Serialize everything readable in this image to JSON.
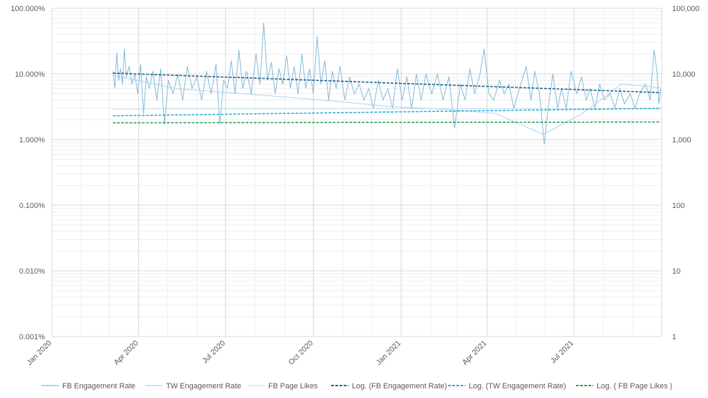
{
  "chart_data": {
    "type": "line",
    "title": "",
    "x_axis": {
      "type": "date",
      "range": [
        "2020-01-01",
        "2021-10-01"
      ],
      "ticks": [
        "2020-01-01",
        "2020-04-01",
        "2020-07-01",
        "2020-10-01",
        "2021-01-01",
        "2021-04-01",
        "2021-07-01"
      ],
      "tick_labels": [
        "Jan 2020",
        "Apr 2020",
        "Jul 2020",
        "Oct 2020",
        "Jan 2021",
        "Apr 2021",
        "Jul 2021"
      ]
    },
    "y_left": {
      "scale": "log",
      "range": [
        1e-05,
        1
      ],
      "ticks": [
        1e-05,
        0.0001,
        0.001,
        0.01,
        0.1,
        1
      ],
      "tick_labels": [
        "0.001%",
        "0.010%",
        "0.100%",
        "1.000%",
        "10.000%",
        "100.000%"
      ]
    },
    "y_right": {
      "scale": "log",
      "range": [
        1,
        100000
      ],
      "ticks": [
        1,
        10,
        100,
        1000,
        10000,
        100000
      ],
      "tick_labels": [
        "1",
        "10",
        "100",
        "1,000",
        "10,000",
        "100,000"
      ]
    },
    "grid": true,
    "legend_position": "bottom",
    "series": [
      {
        "name": "FB Engagement Rate",
        "axis": "left",
        "style": "solid",
        "color": "#7fb9d9",
        "points": [
          [
            "2020-03-05",
            0.11
          ],
          [
            "2020-03-07",
            0.06
          ],
          [
            "2020-03-09",
            0.21
          ],
          [
            "2020-03-11",
            0.08
          ],
          [
            "2020-03-13",
            0.12
          ],
          [
            "2020-03-15",
            0.07
          ],
          [
            "2020-03-17",
            0.24
          ],
          [
            "2020-03-19",
            0.09
          ],
          [
            "2020-03-22",
            0.13
          ],
          [
            "2020-03-25",
            0.07
          ],
          [
            "2020-03-28",
            0.1
          ],
          [
            "2020-03-31",
            0.05
          ],
          [
            "2020-04-03",
            0.14
          ],
          [
            "2020-04-06",
            0.025
          ],
          [
            "2020-04-09",
            0.09
          ],
          [
            "2020-04-12",
            0.06
          ],
          [
            "2020-04-16",
            0.11
          ],
          [
            "2020-04-20",
            0.04
          ],
          [
            "2020-04-24",
            0.12
          ],
          [
            "2020-04-28",
            0.017
          ],
          [
            "2020-05-02",
            0.08
          ],
          [
            "2020-05-07",
            0.05
          ],
          [
            "2020-05-12",
            0.1
          ],
          [
            "2020-05-17",
            0.04
          ],
          [
            "2020-05-22",
            0.13
          ],
          [
            "2020-05-27",
            0.06
          ],
          [
            "2020-06-01",
            0.09
          ],
          [
            "2020-06-06",
            0.04
          ],
          [
            "2020-06-11",
            0.11
          ],
          [
            "2020-06-16",
            0.05
          ],
          [
            "2020-06-21",
            0.14
          ],
          [
            "2020-06-25",
            0.017
          ],
          [
            "2020-06-29",
            0.08
          ],
          [
            "2020-07-03",
            0.06
          ],
          [
            "2020-07-07",
            0.16
          ],
          [
            "2020-07-11",
            0.05
          ],
          [
            "2020-07-15",
            0.23
          ],
          [
            "2020-07-19",
            0.06
          ],
          [
            "2020-07-23",
            0.11
          ],
          [
            "2020-07-28",
            0.05
          ],
          [
            "2020-08-02",
            0.2
          ],
          [
            "2020-08-06",
            0.07
          ],
          [
            "2020-08-10",
            0.6
          ],
          [
            "2020-08-14",
            0.08
          ],
          [
            "2020-08-18",
            0.15
          ],
          [
            "2020-08-22",
            0.05
          ],
          [
            "2020-08-26",
            0.12
          ],
          [
            "2020-08-30",
            0.07
          ],
          [
            "2020-09-03",
            0.19
          ],
          [
            "2020-09-07",
            0.06
          ],
          [
            "2020-09-11",
            0.13
          ],
          [
            "2020-09-15",
            0.05
          ],
          [
            "2020-09-19",
            0.2
          ],
          [
            "2020-09-23",
            0.06
          ],
          [
            "2020-09-27",
            0.12
          ],
          [
            "2020-10-01",
            0.05
          ],
          [
            "2020-10-05",
            0.37
          ],
          [
            "2020-10-09",
            0.07
          ],
          [
            "2020-10-13",
            0.16
          ],
          [
            "2020-10-17",
            0.04
          ],
          [
            "2020-10-21",
            0.11
          ],
          [
            "2020-10-25",
            0.06
          ],
          [
            "2020-10-29",
            0.13
          ],
          [
            "2020-11-03",
            0.04
          ],
          [
            "2020-11-08",
            0.09
          ],
          [
            "2020-11-13",
            0.05
          ],
          [
            "2020-11-18",
            0.07
          ],
          [
            "2020-11-23",
            0.04
          ],
          [
            "2020-11-28",
            0.06
          ],
          [
            "2020-12-03",
            0.03
          ],
          [
            "2020-12-08",
            0.08
          ],
          [
            "2020-12-13",
            0.04
          ],
          [
            "2020-12-18",
            0.06
          ],
          [
            "2020-12-23",
            0.03
          ],
          [
            "2020-12-28",
            0.12
          ],
          [
            "2021-01-02",
            0.04
          ],
          [
            "2021-01-07",
            0.09
          ],
          [
            "2021-01-12",
            0.03
          ],
          [
            "2021-01-17",
            0.1
          ],
          [
            "2021-01-22",
            0.04
          ],
          [
            "2021-01-27",
            0.1
          ],
          [
            "2021-02-02",
            0.05
          ],
          [
            "2021-02-08",
            0.1
          ],
          [
            "2021-02-14",
            0.04
          ],
          [
            "2021-02-20",
            0.09
          ],
          [
            "2021-02-26",
            0.015
          ],
          [
            "2021-03-04",
            0.07
          ],
          [
            "2021-03-09",
            0.04
          ],
          [
            "2021-03-14",
            0.12
          ],
          [
            "2021-03-19",
            0.05
          ],
          [
            "2021-03-24",
            0.09
          ],
          [
            "2021-03-29",
            0.24
          ],
          [
            "2021-04-03",
            0.05
          ],
          [
            "2021-04-08",
            0.04
          ],
          [
            "2021-04-14",
            0.08
          ],
          [
            "2021-04-19",
            0.05
          ],
          [
            "2021-04-24",
            0.07
          ],
          [
            "2021-04-29",
            0.03
          ],
          [
            "2021-05-05",
            0.06
          ],
          [
            "2021-05-12",
            0.13
          ],
          [
            "2021-05-17",
            0.04
          ],
          [
            "2021-05-21",
            0.11
          ],
          [
            "2021-05-26",
            0.05
          ],
          [
            "2021-05-31",
            0.0085
          ],
          [
            "2021-06-04",
            0.03
          ],
          [
            "2021-06-09",
            0.1
          ],
          [
            "2021-06-14",
            0.03
          ],
          [
            "2021-06-18",
            0.06
          ],
          [
            "2021-06-23",
            0.03
          ],
          [
            "2021-06-28",
            0.11
          ],
          [
            "2021-07-04",
            0.05
          ],
          [
            "2021-07-09",
            0.09
          ],
          [
            "2021-07-14",
            0.04
          ],
          [
            "2021-07-18",
            0.06
          ],
          [
            "2021-07-23",
            0.03
          ],
          [
            "2021-07-28",
            0.07
          ],
          [
            "2021-08-02",
            0.04
          ],
          [
            "2021-08-08",
            0.05
          ],
          [
            "2021-08-13",
            0.03
          ],
          [
            "2021-08-18",
            0.06
          ],
          [
            "2021-08-23",
            0.035
          ],
          [
            "2021-08-29",
            0.05
          ],
          [
            "2021-09-03",
            0.03
          ],
          [
            "2021-09-08",
            0.05
          ],
          [
            "2021-09-14",
            0.07
          ],
          [
            "2021-09-19",
            0.04
          ],
          [
            "2021-09-23",
            0.23
          ],
          [
            "2021-09-26",
            0.11
          ],
          [
            "2021-09-28",
            0.035
          ],
          [
            "2021-09-30",
            0.06
          ]
        ]
      },
      {
        "name": "TW Engagement Rate",
        "axis": "left",
        "style": "solid",
        "color": "#a9d3ea",
        "points": [
          [
            "2020-03-05",
            0.095
          ],
          [
            "2020-05-10",
            0.06
          ],
          [
            "2020-07-20",
            0.05
          ],
          [
            "2020-10-10",
            0.04
          ],
          [
            "2020-12-20",
            0.032
          ],
          [
            "2021-03-01",
            0.028
          ],
          [
            "2021-04-10",
            0.025
          ],
          [
            "2021-05-30",
            0.012
          ],
          [
            "2021-07-10",
            0.025
          ],
          [
            "2021-08-20",
            0.07
          ],
          [
            "2021-09-30",
            0.062
          ]
        ]
      },
      {
        "name": "FB Page Likes",
        "axis": "right",
        "style": "solid",
        "color": "#bfe0f1",
        "points": [
          [
            "2020-03-05",
            2900
          ],
          [
            "2020-06-01",
            2950
          ],
          [
            "2020-09-01",
            2950
          ],
          [
            "2020-12-01",
            2950
          ],
          [
            "2021-03-01",
            2950
          ],
          [
            "2021-05-01",
            2950
          ],
          [
            "2021-09-30",
            2960
          ]
        ]
      },
      {
        "name": "Log. (FB Engagement Rate)",
        "axis": "left",
        "style": "dashed",
        "color": "#1f5f8b",
        "points": [
          [
            "2020-03-05",
            0.103
          ],
          [
            "2021-09-30",
            0.052
          ]
        ]
      },
      {
        "name": "Log. (TW Engagement Rate)",
        "axis": "left",
        "style": "dashed",
        "color": "#2ea8d8",
        "points": [
          [
            "2020-03-05",
            0.023
          ],
          [
            "2021-09-30",
            0.03
          ]
        ]
      },
      {
        "name": "Log. ( FB Page Likes )",
        "axis": "right",
        "style": "dashed",
        "color": "#2e9b4e",
        "points": [
          [
            "2020-03-05",
            1800
          ],
          [
            "2021-09-30",
            1850
          ]
        ]
      }
    ]
  }
}
